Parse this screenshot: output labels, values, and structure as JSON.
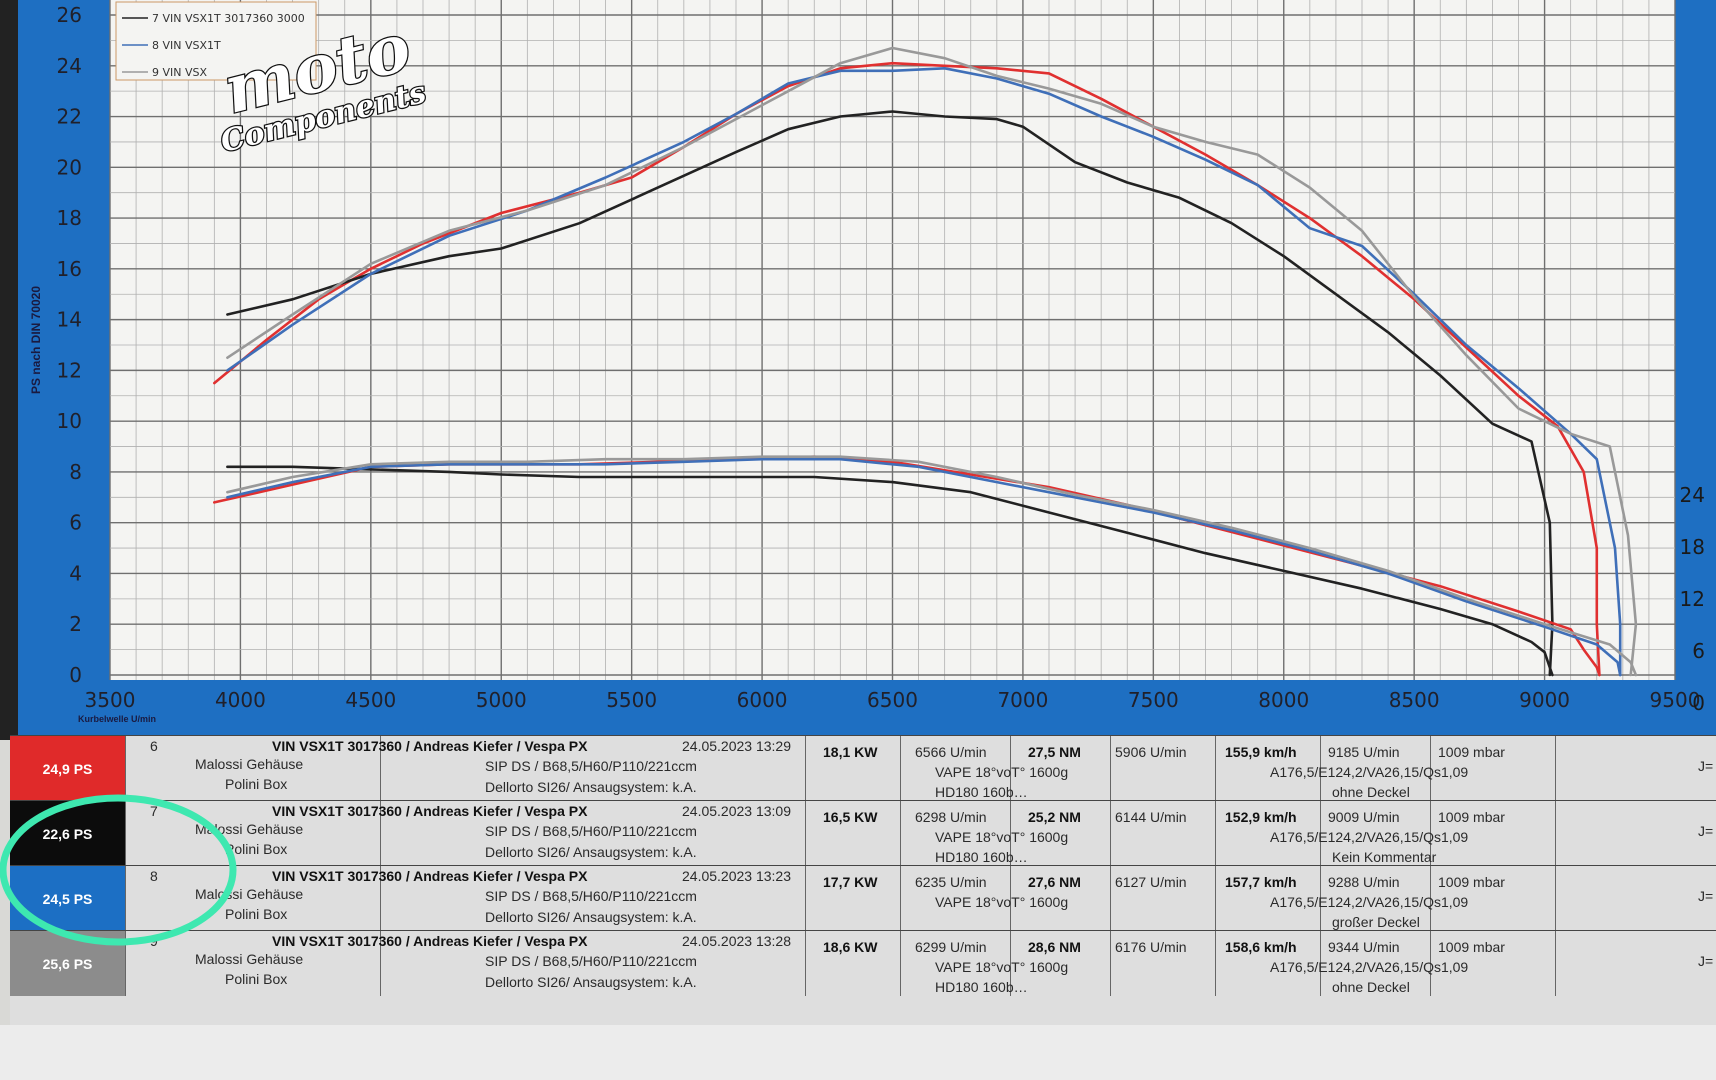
{
  "chart_data": {
    "type": "line",
    "xlabel": "Kurbelwelle U/min",
    "ylabel": "PS nach DIN 70020",
    "xlim": [
      3500,
      9500
    ],
    "ylim": [
      0,
      26
    ],
    "x_ticks": [
      "3500",
      "4000",
      "4500",
      "5000",
      "5500",
      "6000",
      "6500",
      "7000",
      "7500",
      "8000",
      "8500",
      "9000",
      "9500"
    ],
    "y_ticks": [
      "0",
      "2",
      "4",
      "6",
      "8",
      "10",
      "12",
      "14",
      "16",
      "18",
      "20",
      "22",
      "24",
      "26"
    ],
    "right_ticks": [
      "0",
      "6",
      "12",
      "18",
      "24"
    ],
    "legend": [
      {
        "label": "7  VIN VSX1T 3017360 3000",
        "color": "#222222"
      },
      {
        "label": "8  VIN VSX1T",
        "color": "#3f6fb8"
      },
      {
        "label": "9  VIN VSX",
        "color": "#999999"
      }
    ],
    "logo": {
      "line1": "moto",
      "line2": "Components"
    },
    "series": [
      {
        "color": "#e03030",
        "kind": "power",
        "x": [
          3900,
          4100,
          4300,
          4500,
          4700,
          5000,
          5300,
          5500,
          5700,
          5900,
          6100,
          6300,
          6500,
          6700,
          6900,
          7100,
          7300,
          7500,
          7700,
          7900,
          8100,
          8300,
          8500,
          8700,
          8900,
          9050,
          9150,
          9200,
          9200,
          9210
        ],
        "y": [
          11.5,
          13.2,
          14.8,
          16.0,
          17.0,
          18.2,
          19.0,
          19.6,
          20.8,
          22.1,
          23.2,
          23.9,
          24.1,
          24.0,
          23.9,
          23.7,
          22.7,
          21.6,
          20.5,
          19.3,
          18.0,
          16.5,
          14.8,
          12.9,
          11.0,
          9.8,
          8.0,
          5.0,
          2.0,
          0.0
        ]
      },
      {
        "color": "#222222",
        "kind": "power",
        "x": [
          3950,
          4200,
          4500,
          4800,
          5000,
          5300,
          5600,
          5900,
          6100,
          6300,
          6500,
          6700,
          6900,
          7000,
          7200,
          7400,
          7600,
          7800,
          8000,
          8200,
          8400,
          8600,
          8800,
          8950,
          9020,
          9030,
          9020
        ],
        "y": [
          14.2,
          14.8,
          15.8,
          16.5,
          16.8,
          17.8,
          19.2,
          20.6,
          21.5,
          22.0,
          22.2,
          22.0,
          21.9,
          21.6,
          20.2,
          19.4,
          18.8,
          17.8,
          16.5,
          15.0,
          13.5,
          11.8,
          9.9,
          9.2,
          6.0,
          2.0,
          0.0
        ]
      },
      {
        "color": "#3f6fb8",
        "kind": "power",
        "x": [
          3950,
          4200,
          4500,
          4800,
          5100,
          5400,
          5700,
          5900,
          6100,
          6300,
          6500,
          6700,
          6900,
          7100,
          7300,
          7500,
          7700,
          7900,
          8100,
          8300,
          8500,
          8700,
          8900,
          9100,
          9200,
          9270,
          9290,
          9290
        ],
        "y": [
          12.0,
          13.8,
          15.8,
          17.3,
          18.3,
          19.6,
          21.0,
          22.1,
          23.3,
          23.8,
          23.8,
          23.9,
          23.5,
          22.9,
          22.0,
          21.2,
          20.3,
          19.3,
          17.6,
          16.9,
          15.0,
          13.0,
          11.3,
          9.5,
          8.5,
          5.0,
          2.0,
          0.0
        ]
      },
      {
        "color": "#999999",
        "kind": "power",
        "x": [
          3950,
          4200,
          4500,
          4800,
          5100,
          5400,
          5700,
          5900,
          6100,
          6300,
          6500,
          6700,
          6900,
          7100,
          7300,
          7500,
          7700,
          7900,
          8100,
          8300,
          8500,
          8700,
          8900,
          9100,
          9250,
          9320,
          9350,
          9330
        ],
        "y": [
          12.5,
          14.2,
          16.2,
          17.5,
          18.3,
          19.3,
          20.8,
          21.9,
          23.0,
          24.1,
          24.7,
          24.3,
          23.6,
          23.1,
          22.5,
          21.6,
          21.0,
          20.5,
          19.2,
          17.5,
          14.9,
          12.6,
          10.5,
          9.5,
          9.0,
          5.5,
          2.0,
          0.0
        ]
      },
      {
        "color": "#e03030",
        "kind": "torque",
        "x": [
          3900,
          4200,
          4500,
          4800,
          5000,
          5300,
          5600,
          5900,
          6200,
          6500,
          6800,
          7100,
          7400,
          7700,
          8000,
          8300,
          8600,
          8900,
          9100,
          9150,
          9200,
          9210
        ],
        "y": [
          6.8,
          7.5,
          8.2,
          8.3,
          8.3,
          8.3,
          8.4,
          8.5,
          8.6,
          8.4,
          7.9,
          7.4,
          6.7,
          5.9,
          5.1,
          4.3,
          3.5,
          2.5,
          1.8,
          1.0,
          0.3,
          0.0
        ]
      },
      {
        "color": "#222222",
        "kind": "torque",
        "x": [
          3950,
          4200,
          4500,
          4800,
          5000,
          5300,
          5600,
          5900,
          6200,
          6500,
          6800,
          7100,
          7400,
          7700,
          8000,
          8300,
          8600,
          8800,
          8950,
          9000,
          9020,
          9030
        ],
        "y": [
          8.2,
          8.2,
          8.1,
          8.0,
          7.9,
          7.8,
          7.8,
          7.8,
          7.8,
          7.6,
          7.2,
          6.4,
          5.6,
          4.8,
          4.1,
          3.4,
          2.6,
          2.0,
          1.3,
          0.9,
          0.3,
          0.0
        ]
      },
      {
        "color": "#3f6fb8",
        "kind": "torque",
        "x": [
          3950,
          4200,
          4500,
          4800,
          5100,
          5400,
          5700,
          6000,
          6300,
          6600,
          6900,
          7200,
          7500,
          7800,
          8100,
          8400,
          8700,
          9000,
          9200,
          9280,
          9290
        ],
        "y": [
          7.0,
          7.6,
          8.2,
          8.3,
          8.3,
          8.3,
          8.4,
          8.5,
          8.5,
          8.2,
          7.6,
          7.0,
          6.4,
          5.7,
          4.9,
          4.0,
          2.9,
          1.9,
          1.2,
          0.5,
          0.0
        ]
      },
      {
        "color": "#999999",
        "kind": "torque",
        "x": [
          3950,
          4200,
          4500,
          4800,
          5100,
          5400,
          5700,
          6000,
          6300,
          6600,
          6900,
          7200,
          7500,
          7800,
          8100,
          8400,
          8700,
          9000,
          9250,
          9330,
          9350
        ],
        "y": [
          7.2,
          7.8,
          8.3,
          8.4,
          8.4,
          8.5,
          8.5,
          8.6,
          8.6,
          8.4,
          7.8,
          7.1,
          6.5,
          5.8,
          5.0,
          4.1,
          3.0,
          2.0,
          1.2,
          0.5,
          0.0
        ]
      }
    ]
  },
  "runs": [
    {
      "badge": "24,9 PS",
      "badge_color": "#e02a2a",
      "no": "6",
      "title": "VIN VSX1T 3017360 / Andreas Kiefer / Vespa PX",
      "date": "24.05.2023 13:29",
      "line2": "Malossi Gehäuse",
      "line3": "Polini Box",
      "setup1": "SIP DS / B68,5/H60/P110/221ccm",
      "setup2": "Dellorto SI26/ Ansaugsystem: k.A.",
      "kw": "18,1 KW",
      "kw_rpm": "6566 U/min",
      "nm": "27,5 NM",
      "nm_rpm": "5906 U/min",
      "vape": "VAPE  18°voT° 1600g",
      "hd": "HD180 160b…",
      "speed": "155,9 km/h",
      "speed_rpm": "9185 U/min",
      "mbar": "1009  mbar",
      "jet": "A176,5/E124,2/VA26,15/Qs1,09",
      "note": "ohne Deckel"
    },
    {
      "badge": "22,6 PS",
      "badge_color": "#0c0c0c",
      "no": "7",
      "title": "VIN VSX1T 3017360 / Andreas Kiefer / Vespa PX",
      "date": "24.05.2023 13:09",
      "line2": "Malossi Gehäuse",
      "line3": "Polini Box",
      "setup1": "SIP DS / B68,5/H60/P110/221ccm",
      "setup2": "Dellorto SI26/ Ansaugsystem: k.A.",
      "kw": "16,5 KW",
      "kw_rpm": "6298 U/min",
      "nm": "25,2 NM",
      "nm_rpm": "6144 U/min",
      "vape": "VAPE  18°voT° 1600g",
      "hd": "HD180 160b…",
      "speed": "152,9 km/h",
      "speed_rpm": "9009 U/min",
      "mbar": "1009  mbar",
      "jet": "A176,5/E124,2/VA26,15/Qs1,09",
      "note": "Kein Kommentar"
    },
    {
      "badge": "24,5 PS",
      "badge_color": "#1c6fc4",
      "no": "8",
      "title": "VIN VSX1T 3017360 / Andreas Kiefer / Vespa PX",
      "date": "24.05.2023 13:23",
      "line2": "Malossi Gehäuse",
      "line3": "Polini Box",
      "setup1": "SIP DS / B68,5/H60/P110/221ccm",
      "setup2": "Dellorto SI26/ Ansaugsystem: k.A.",
      "kw": "17,7 KW",
      "kw_rpm": "6235 U/min",
      "nm": "27,6 NM",
      "nm_rpm": "6127 U/min",
      "vape": "VAPE  18°voT° 1600g",
      "hd": "",
      "speed": "157,7 km/h",
      "speed_rpm": "9288 U/min",
      "mbar": "1009  mbar",
      "jet": "A176,5/E124,2/VA26,15/Qs1,09",
      "note": "großer Deckel"
    },
    {
      "badge": "25,6 PS",
      "badge_color": "#8c8c8c",
      "no": "9",
      "title": "VIN VSX1T 3017360 / Andreas Kiefer / Vespa PX",
      "date": "24.05.2023 13:28",
      "line2": "Malossi Gehäuse",
      "line3": "Polini Box",
      "setup1": "SIP DS / B68,5/H60/P110/221ccm",
      "setup2": "Dellorto SI26/ Ansaugsystem: k.A.",
      "kw": "18,6 KW",
      "kw_rpm": "6299 U/min",
      "nm": "28,6 NM",
      "nm_rpm": "6176 U/min",
      "vape": "VAPE  18°voT° 1600g",
      "hd": "HD180 160b…",
      "speed": "158,6 km/h",
      "speed_rpm": "9344 U/min",
      "mbar": "1009  mbar",
      "jet": "A176,5/E124,2/VA26,15/Qs1,09",
      "note": "ohne Deckel"
    }
  ],
  "side_mark": "J=",
  "highlight_color": "#3ee8b0"
}
